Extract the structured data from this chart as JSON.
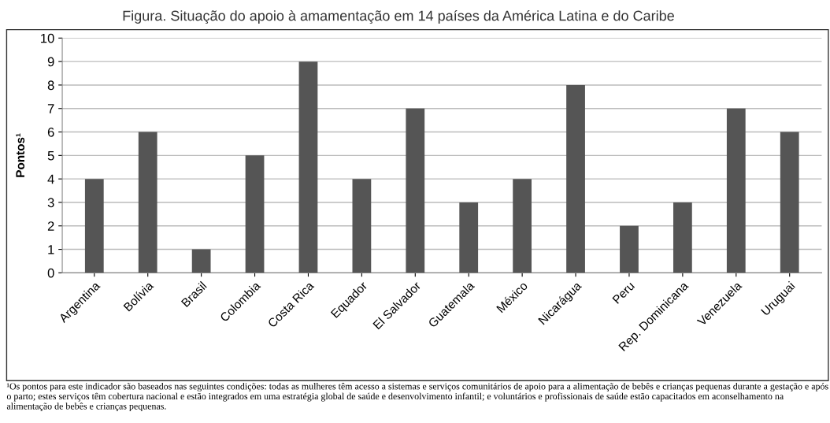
{
  "chart_data": {
    "type": "bar",
    "title": "Figura. Situação do apoio à amamentação em 14 países da América Latina e do Caribe",
    "ylabel": "Pontos¹",
    "categories": [
      "Argentina",
      "Bolívia",
      "Brasil",
      "Colombia",
      "Costa Rica",
      "Equador",
      "El Salvador",
      "Guatemala",
      "México",
      "Nicarágua",
      "Peru",
      "Rep. Dominicana",
      "Venezuela",
      "Uruguai"
    ],
    "values": [
      4,
      6,
      1,
      5,
      9,
      4,
      7,
      3,
      4,
      8,
      2,
      3,
      7,
      6
    ],
    "color": "#555555",
    "ylim": [
      0,
      10
    ],
    "yticks": [
      0,
      1,
      2,
      3,
      4,
      5,
      6,
      7,
      8,
      9,
      10
    ],
    "grid": "y",
    "annotations": [
      "¹Os pontos para este indicador são baseados nas seguintes condições: todas as mulheres têm acesso a sistemas e serviços comunitários de apoio para a alimentação de bebês e crianças pequenas durante a gestação e após o parto; estes serviços têm cobertura nacional e estão integrados em uma estratégia global de saúde e desenvolvimento infantil; e voluntários e profissionais de saúde estão capacitados em aconselhamento na alimentação de bebês e crianças pequenas."
    ]
  }
}
